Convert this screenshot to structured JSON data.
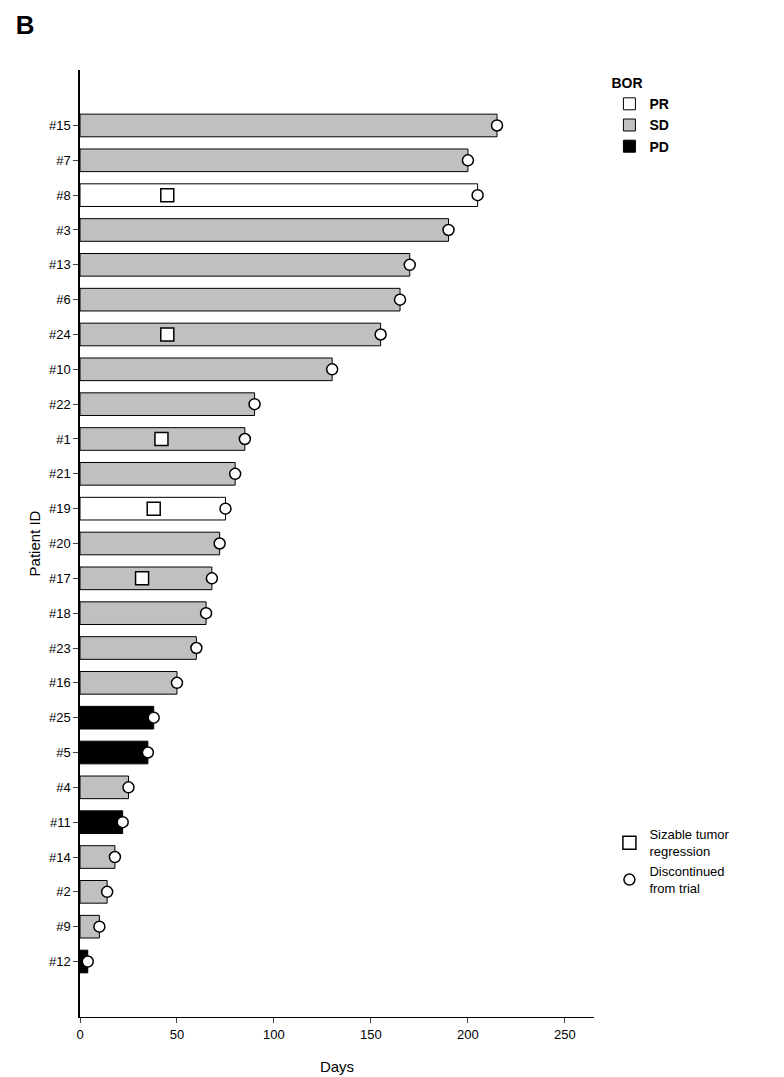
{
  "chart_data": {
    "type": "bar",
    "orientation": "horizontal",
    "title": "B",
    "x_label": "Days",
    "y_label": "Patient ID",
    "legend_title": "BOR",
    "legend": "right",
    "grid": false,
    "categories": [
      "#15",
      "#7",
      "#8",
      "#3",
      "#13",
      "#6",
      "#24",
      "#10",
      "#22",
      "#1",
      "#21",
      "#19",
      "#20",
      "#17",
      "#18",
      "#23",
      "#16",
      "#25",
      "#5",
      "#4",
      "#11",
      "#14",
      "#2",
      "#9",
      "#12"
    ],
    "xlim": [
      0,
      265
    ],
    "xticks": [
      0,
      50,
      100,
      150,
      200,
      250
    ],
    "series": [
      {
        "name": "PR",
        "type": "bar",
        "color": "#ffffff",
        "values": [
          null,
          null,
          205,
          null,
          null,
          null,
          null,
          null,
          null,
          null,
          null,
          75,
          null,
          null,
          null,
          null,
          null,
          null,
          null,
          null,
          null,
          null,
          null,
          null,
          null
        ]
      },
      {
        "name": "SD",
        "type": "bar",
        "color": "#c0c0c0",
        "values": [
          215,
          200,
          null,
          190,
          170,
          165,
          155,
          130,
          90,
          85,
          80,
          null,
          72,
          68,
          65,
          60,
          50,
          null,
          null,
          25,
          null,
          18,
          14,
          10,
          null
        ]
      },
      {
        "name": "PD",
        "type": "bar",
        "color": "#000000",
        "values": [
          null,
          null,
          null,
          null,
          null,
          null,
          null,
          null,
          null,
          null,
          null,
          null,
          null,
          null,
          null,
          null,
          null,
          38,
          35,
          null,
          22,
          null,
          null,
          null,
          4
        ]
      },
      {
        "name": "Sizable tumor\nregression",
        "type": "scatter",
        "marker": "square",
        "color": "#ffffff",
        "values": [
          null,
          null,
          45,
          null,
          null,
          null,
          45,
          null,
          null,
          42,
          null,
          38,
          null,
          32,
          null,
          null,
          null,
          null,
          null,
          null,
          null,
          null,
          null,
          null,
          null
        ]
      },
      {
        "name": "Discontinued\nfrom trial",
        "type": "scatter",
        "marker": "circle",
        "color": "#ffffff",
        "values": [
          215,
          200,
          205,
          190,
          170,
          165,
          155,
          130,
          90,
          85,
          80,
          75,
          72,
          68,
          65,
          60,
          50,
          38,
          35,
          25,
          22,
          18,
          14,
          10,
          4
        ]
      }
    ]
  }
}
